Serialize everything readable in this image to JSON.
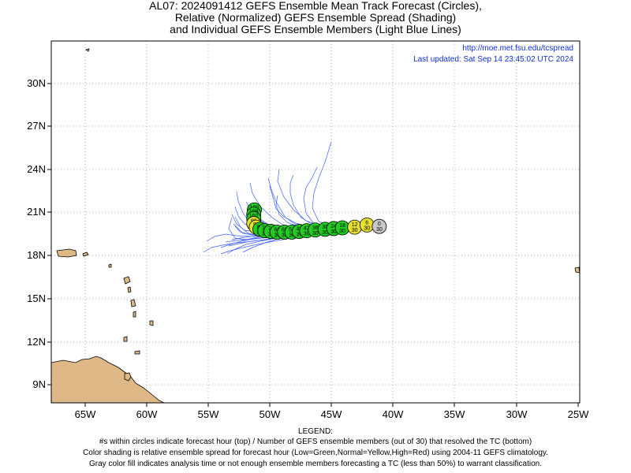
{
  "title": {
    "line1": "AL07: 2024091412 GEFS Ensemble Mean Track Forecast (Circles),",
    "line2": "Relative (Normalized) GEFS Ensemble Spread (Shading)",
    "line3": "and Individual GEFS Ensemble Members (Light Blue Lines)"
  },
  "header": {
    "url": "http://moe.met.fsu.edu/tcspread",
    "updated": "Last updated: Sat Sep 14 23:45:02 UTC 2024"
  },
  "axes": {
    "x_ticks": [
      "65W",
      "60W",
      "55W",
      "50W",
      "45W",
      "40W",
      "35W",
      "30W",
      "25W"
    ],
    "y_ticks": [
      "30N",
      "27N",
      "24N",
      "21N",
      "18N",
      "15N",
      "12N",
      "9N"
    ]
  },
  "legend": {
    "heading": "LEGEND:",
    "line1": "#s within circles indicate forecast hour (top) / Number of GEFS ensemble members (out of 30) that resolved the TC (bottom)",
    "line2": "Color shading is relative ensemble spread for forecast hour (Low=Green,Normal=Yellow,High=Red) using 2004-11 GEFS climatology.",
    "line3": "Gray color fill indicates analysis time or not enough ensemble members forecasting a TC (less than 50%) to warrant classification."
  },
  "colors": {
    "land": "#deb887",
    "member_track": "#4060ff",
    "low_spread": "#22cc22",
    "normal_spread": "#e8e030",
    "analysis": "#c8c8c8",
    "header_text": "#1030d0"
  },
  "circles": [
    {
      "hour": "0",
      "members": "30",
      "lon": -41.1,
      "lat": 20.0,
      "fill": "gray"
    },
    {
      "hour": "6",
      "members": "30",
      "lon": -42.1,
      "lat": 20.1,
      "fill": "yellow"
    },
    {
      "hour": "12",
      "members": "30",
      "lon": -43.1,
      "lat": 19.95,
      "fill": "yellow"
    },
    {
      "hour": "18",
      "members": "30",
      "lon": -44.1,
      "lat": 19.9,
      "fill": "green"
    },
    {
      "hour": "24",
      "members": "30",
      "lon": -44.8,
      "lat": 19.85,
      "fill": "green"
    },
    {
      "hour": "30",
      "members": "30",
      "lon": -45.5,
      "lat": 19.8,
      "fill": "green"
    },
    {
      "hour": "36",
      "members": "30",
      "lon": -46.3,
      "lat": 19.75,
      "fill": "green"
    },
    {
      "hour": "42",
      "members": "30",
      "lon": -47.0,
      "lat": 19.7,
      "fill": "green"
    },
    {
      "hour": "48",
      "members": "30",
      "lon": -47.6,
      "lat": 19.65,
      "fill": "green"
    },
    {
      "hour": "54",
      "members": "30",
      "lon": -48.2,
      "lat": 19.6,
      "fill": "green"
    },
    {
      "hour": "60",
      "members": "30",
      "lon": -48.8,
      "lat": 19.6,
      "fill": "green"
    },
    {
      "hour": "66",
      "members": "30",
      "lon": -49.4,
      "lat": 19.6,
      "fill": "green"
    },
    {
      "hour": "72",
      "members": "30",
      "lon": -49.9,
      "lat": 19.65,
      "fill": "green"
    },
    {
      "hour": "78",
      "members": "30",
      "lon": -50.4,
      "lat": 19.7,
      "fill": "green"
    },
    {
      "hour": "84",
      "members": "30",
      "lon": -50.8,
      "lat": 19.8,
      "fill": "green"
    },
    {
      "hour": "90",
      "members": "30",
      "lon": -51.1,
      "lat": 19.95,
      "fill": "yellow"
    },
    {
      "hour": "96",
      "members": "30",
      "lon": -51.3,
      "lat": 20.2,
      "fill": "yellow"
    },
    {
      "hour": "102",
      "members": "30",
      "lon": -51.3,
      "lat": 20.55,
      "fill": "green"
    },
    {
      "hour": "108",
      "members": "30",
      "lon": -51.3,
      "lat": 20.85,
      "fill": "green"
    },
    {
      "hour": "120",
      "members": "30",
      "lon": -51.25,
      "lat": 21.15,
      "fill": "green"
    }
  ]
}
